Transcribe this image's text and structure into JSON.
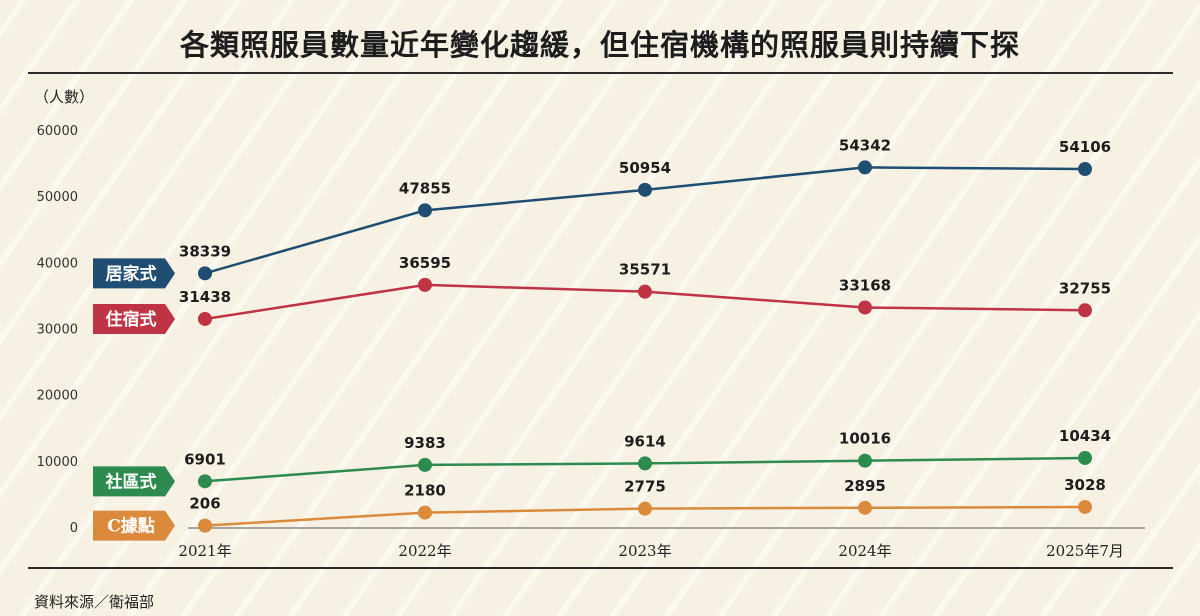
{
  "title": "各類照服員數量近年變化趨緩，但住宿機構的照服員則持續下探",
  "unit_label": "（人數）",
  "source": "資料來源／衛福部",
  "chart_data": {
    "type": "line",
    "categories": [
      "2021年",
      "2022年",
      "2023年",
      "2024年",
      "2025年7月"
    ],
    "ylim": [
      0,
      60000
    ],
    "yticks": [
      0,
      10000,
      20000,
      30000,
      40000,
      50000,
      60000
    ],
    "grid": false,
    "legend": "left, labels at series start",
    "series": [
      {
        "name": "居家式",
        "color": "#1f4e72",
        "values": [
          38339,
          47855,
          50954,
          54342,
          54106
        ]
      },
      {
        "name": "住宿式",
        "color": "#bf3345",
        "values": [
          31438,
          36595,
          35571,
          33168,
          32755
        ]
      },
      {
        "name": "社區式",
        "color": "#2e8b4f",
        "values": [
          6901,
          9383,
          9614,
          10016,
          10434
        ]
      },
      {
        "name": "C據點",
        "color": "#db8a3c",
        "values": [
          206,
          2180,
          2775,
          2895,
          3028
        ]
      }
    ]
  }
}
